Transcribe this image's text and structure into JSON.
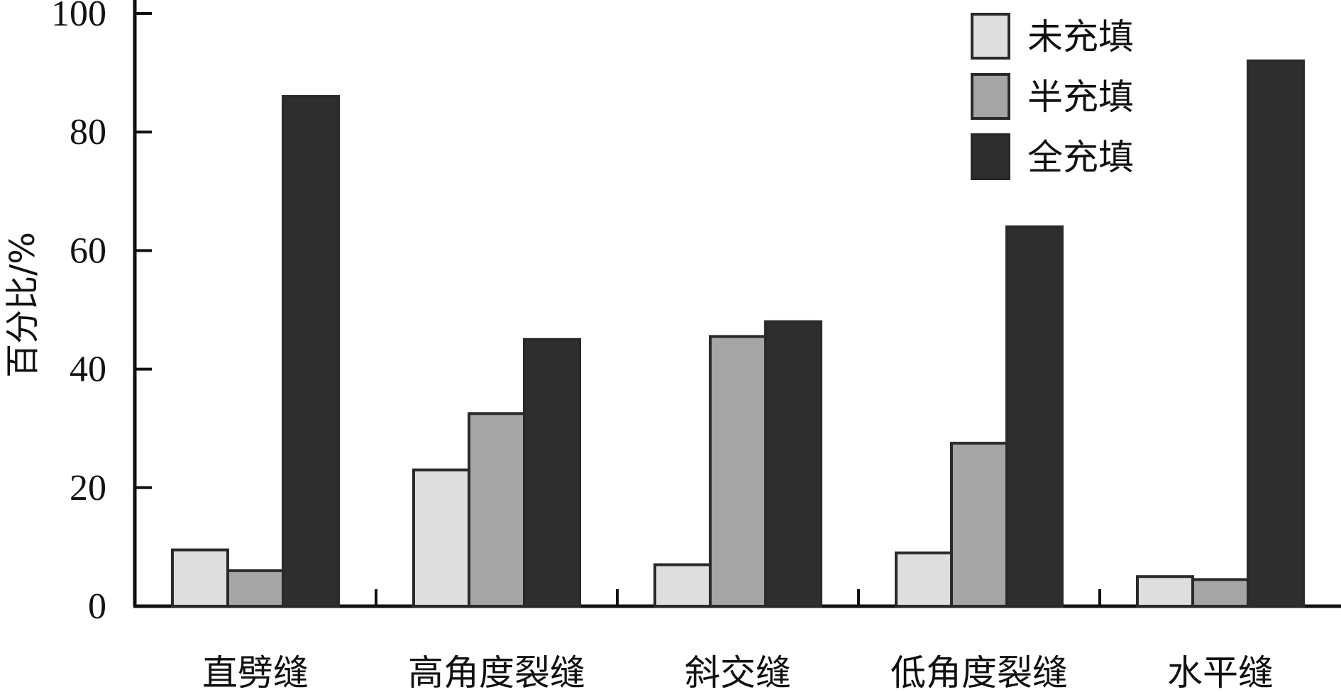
{
  "chart_data": {
    "type": "bar",
    "ylabel": "百分比/%",
    "xlabel": "",
    "ylim": [
      0,
      100
    ],
    "yticks": [
      0,
      20,
      40,
      60,
      80,
      100
    ],
    "categories": [
      "直劈缝",
      "高角度裂缝",
      "斜交缝",
      "低角度裂缝",
      "水平缝"
    ],
    "series": [
      {
        "name": "未充填",
        "color": "#dedede",
        "values": [
          9.5,
          23,
          7,
          9,
          5
        ]
      },
      {
        "name": "半充填",
        "color": "#a5a5a5",
        "values": [
          6,
          32.5,
          45.5,
          27.5,
          4.5
        ]
      },
      {
        "name": "全充填",
        "color": "#2e2e2e",
        "values": [
          86,
          45,
          48,
          64,
          92
        ]
      }
    ],
    "legend_position": "top-right",
    "grid": false
  }
}
